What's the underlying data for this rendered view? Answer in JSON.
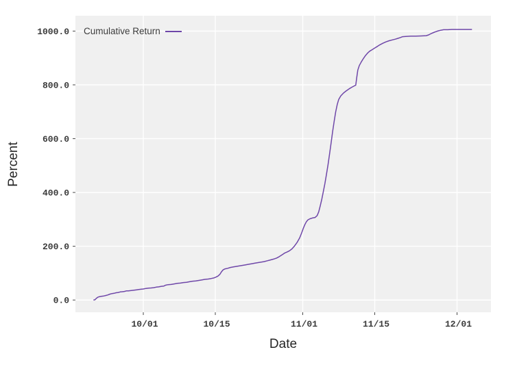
{
  "labels": {
    "x": "Date",
    "y": "Percent"
  },
  "legend": {
    "label": "Cumulative Return"
  },
  "colors": {
    "page_background": "#ffffff",
    "panel": "#f0f0f0",
    "grid": "#ffffff",
    "line": "#6e46a8",
    "tick_mark": "#4a4a4a",
    "tick_label": "#3b3b3b",
    "axis_label": "#262626",
    "legend_label": "#3a3a3a"
  },
  "chart_data": {
    "type": "line",
    "title": "",
    "xlabel": "Date",
    "ylabel": "Percent",
    "legend_entries": [
      "Cumulative Return"
    ],
    "legend_position": "top-left-inside",
    "grid": true,
    "x_unit": "days relative to 10/01",
    "xlim": [
      -13.2,
      67.6
    ],
    "ylim": [
      -45.5,
      1057
    ],
    "x_ticks": [
      {
        "label": "10/01",
        "day": 0
      },
      {
        "label": "10/15",
        "day": 14
      },
      {
        "label": "11/01",
        "day": 31
      },
      {
        "label": "11/15",
        "day": 45
      },
      {
        "label": "12/01",
        "day": 61
      }
    ],
    "y_ticks": [
      {
        "label": "0.0",
        "value": 0
      },
      {
        "label": "200.0",
        "value": 200
      },
      {
        "label": "400.0",
        "value": 400
      },
      {
        "label": "600.0",
        "value": 600
      },
      {
        "label": "800.0",
        "value": 800
      },
      {
        "label": "1000.0",
        "value": 1000
      }
    ],
    "series": [
      {
        "name": "Cumulative Return",
        "points": [
          [
            -9.7,
            0
          ],
          [
            -9.4,
            1
          ],
          [
            -9.1,
            7
          ],
          [
            -8.8,
            11
          ],
          [
            -8.4,
            13
          ],
          [
            -8.1,
            14
          ],
          [
            -7.7,
            15
          ],
          [
            -7.3,
            17
          ],
          [
            -6.9,
            19
          ],
          [
            -6.5,
            22
          ],
          [
            -6.1,
            24
          ],
          [
            -5.7,
            25
          ],
          [
            -5.3,
            27
          ],
          [
            -4.9,
            28
          ],
          [
            -4.5,
            30
          ],
          [
            -4.1,
            31
          ],
          [
            -3.7,
            32
          ],
          [
            -3.3,
            34
          ],
          [
            -2.9,
            34
          ],
          [
            -2.5,
            35
          ],
          [
            -2.1,
            36
          ],
          [
            -1.7,
            37
          ],
          [
            -1.3,
            38
          ],
          [
            -0.9,
            39
          ],
          [
            -0.5,
            40
          ],
          [
            0,
            41
          ],
          [
            0.5,
            43
          ],
          [
            1,
            44
          ],
          [
            1.5,
            45
          ],
          [
            2,
            46
          ],
          [
            2.5,
            48
          ],
          [
            3,
            49
          ],
          [
            3.5,
            51
          ],
          [
            4,
            52
          ],
          [
            4.3,
            55
          ],
          [
            4.8,
            57
          ],
          [
            5.4,
            58
          ],
          [
            6,
            60
          ],
          [
            6.6,
            62
          ],
          [
            7.2,
            63
          ],
          [
            7.8,
            65
          ],
          [
            8.4,
            66
          ],
          [
            9,
            68
          ],
          [
            9.6,
            70
          ],
          [
            10.2,
            71
          ],
          [
            10.8,
            73
          ],
          [
            11.4,
            75
          ],
          [
            12,
            77
          ],
          [
            12.6,
            78
          ],
          [
            13.2,
            80
          ],
          [
            13.7,
            82
          ],
          [
            14.1,
            85
          ],
          [
            14.5,
            89
          ],
          [
            14.9,
            96
          ],
          [
            15.2,
            105
          ],
          [
            15.5,
            112
          ],
          [
            15.9,
            116
          ],
          [
            16.4,
            118
          ],
          [
            16.9,
            121
          ],
          [
            17.5,
            123
          ],
          [
            18.1,
            125
          ],
          [
            18.7,
            127
          ],
          [
            19.3,
            129
          ],
          [
            19.9,
            131
          ],
          [
            20.5,
            133
          ],
          [
            21.1,
            135
          ],
          [
            21.7,
            137
          ],
          [
            22.3,
            139
          ],
          [
            22.9,
            141
          ],
          [
            23.5,
            143
          ],
          [
            24.1,
            146
          ],
          [
            24.7,
            149
          ],
          [
            25.3,
            152
          ],
          [
            25.9,
            156
          ],
          [
            26.4,
            161
          ],
          [
            26.9,
            167
          ],
          [
            27.2,
            171
          ],
          [
            27.5,
            175
          ],
          [
            27.9,
            178
          ],
          [
            28.4,
            183
          ],
          [
            28.9,
            190
          ],
          [
            29.4,
            201
          ],
          [
            29.9,
            214
          ],
          [
            30.4,
            231
          ],
          [
            30.8,
            250
          ],
          [
            31.1,
            266
          ],
          [
            31.4,
            280
          ],
          [
            31.7,
            291
          ],
          [
            32,
            298
          ],
          [
            32.4,
            302
          ],
          [
            32.9,
            305
          ],
          [
            33.4,
            307
          ],
          [
            33.8,
            314
          ],
          [
            34.1,
            328
          ],
          [
            34.4,
            350
          ],
          [
            34.7,
            375
          ],
          [
            35,
            403
          ],
          [
            35.3,
            433
          ],
          [
            35.6,
            466
          ],
          [
            35.9,
            502
          ],
          [
            36.2,
            541
          ],
          [
            36.5,
            583
          ],
          [
            36.8,
            625
          ],
          [
            37.1,
            664
          ],
          [
            37.4,
            699
          ],
          [
            37.7,
            727
          ],
          [
            38,
            746
          ],
          [
            38.4,
            759
          ],
          [
            38.9,
            769
          ],
          [
            39.4,
            777
          ],
          [
            40,
            785
          ],
          [
            40.5,
            791
          ],
          [
            41,
            796
          ],
          [
            41.3,
            799
          ],
          [
            41.5,
            828
          ],
          [
            41.7,
            855
          ],
          [
            42,
            872
          ],
          [
            42.4,
            886
          ],
          [
            42.8,
            898
          ],
          [
            43.2,
            909
          ],
          [
            43.6,
            918
          ],
          [
            44,
            925
          ],
          [
            44.5,
            931
          ],
          [
            45,
            937
          ],
          [
            45.5,
            943
          ],
          [
            46,
            949
          ],
          [
            46.6,
            955
          ],
          [
            47.2,
            960
          ],
          [
            47.8,
            964
          ],
          [
            48.4,
            967
          ],
          [
            49,
            970
          ],
          [
            49.5,
            973
          ],
          [
            50,
            976
          ],
          [
            50.4,
            979
          ],
          [
            51,
            980
          ],
          [
            52,
            981
          ],
          [
            53,
            981
          ],
          [
            54,
            982
          ],
          [
            55,
            983
          ],
          [
            55.5,
            986
          ],
          [
            56,
            991
          ],
          [
            56.6,
            996
          ],
          [
            57.2,
            1000
          ],
          [
            57.8,
            1003
          ],
          [
            58.4,
            1005
          ],
          [
            59.2,
            1005
          ],
          [
            60,
            1006
          ],
          [
            61,
            1006
          ],
          [
            62,
            1006
          ],
          [
            63,
            1006
          ],
          [
            63.9,
            1006
          ]
        ]
      }
    ]
  }
}
